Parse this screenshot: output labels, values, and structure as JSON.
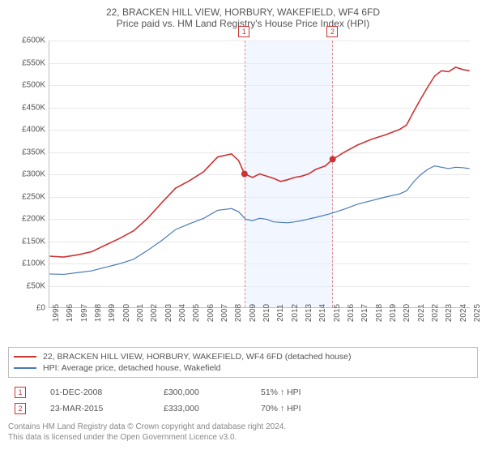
{
  "title_line1": "22, BRACKEN HILL VIEW, HORBURY, WAKEFIELD, WF4 6FD",
  "title_line2": "Price paid vs. HM Land Registry's House Price Index (HPI)",
  "chart": {
    "type": "line",
    "background_color": "#ffffff",
    "grid_color": "#e8e8e8",
    "border_color": "#bfbfbf",
    "highlight_color": "#e6f0ff",
    "highlight_border_color": "#cc3333",
    "y_axis": {
      "min": 0,
      "max": 600000,
      "tick_step": 50000,
      "tick_labels": [
        "£0",
        "£50K",
        "£100K",
        "£150K",
        "£200K",
        "£250K",
        "£300K",
        "£350K",
        "£400K",
        "£450K",
        "£500K",
        "£550K",
        "£600K"
      ],
      "label_fontsize": 10,
      "label_color": "#555555"
    },
    "x_axis": {
      "min": 1995,
      "max": 2025,
      "tick_step": 1,
      "tick_labels": [
        "1995",
        "1996",
        "1997",
        "1998",
        "1999",
        "2000",
        "2001",
        "2002",
        "2003",
        "2004",
        "2005",
        "2006",
        "2007",
        "2008",
        "2009",
        "2010",
        "2011",
        "2012",
        "2013",
        "2014",
        "2015",
        "2016",
        "2017",
        "2018",
        "2019",
        "2020",
        "2021",
        "2022",
        "2023",
        "2024",
        "2025"
      ],
      "label_fontsize": 10,
      "label_color": "#555555"
    },
    "highlight_band": {
      "x_start": 2008.92,
      "x_end": 2015.22
    },
    "series": [
      {
        "name": "22, BRACKEN HILL VIEW, HORBURY, WAKEFIELD, WF4 6FD (detached house)",
        "color": "#cc3333",
        "line_width": 1.6,
        "data": [
          [
            1995,
            115000
          ],
          [
            1996,
            113000
          ],
          [
            1997,
            118000
          ],
          [
            1998,
            125000
          ],
          [
            1999,
            140000
          ],
          [
            2000,
            155000
          ],
          [
            2001,
            172000
          ],
          [
            2002,
            200000
          ],
          [
            2003,
            235000
          ],
          [
            2004,
            268000
          ],
          [
            2005,
            285000
          ],
          [
            2006,
            305000
          ],
          [
            2007,
            338000
          ],
          [
            2008,
            345000
          ],
          [
            2008.5,
            330000
          ],
          [
            2008.92,
            300000
          ],
          [
            2009.5,
            292000
          ],
          [
            2010,
            300000
          ],
          [
            2010.5,
            295000
          ],
          [
            2011,
            290000
          ],
          [
            2011.5,
            283000
          ],
          [
            2012,
            287000
          ],
          [
            2012.5,
            292000
          ],
          [
            2013,
            295000
          ],
          [
            2013.5,
            300000
          ],
          [
            2014,
            310000
          ],
          [
            2014.7,
            318000
          ],
          [
            2015.22,
            333000
          ],
          [
            2015.6,
            340000
          ],
          [
            2016,
            348000
          ],
          [
            2017,
            365000
          ],
          [
            2018,
            378000
          ],
          [
            2019,
            388000
          ],
          [
            2020,
            400000
          ],
          [
            2020.5,
            410000
          ],
          [
            2021,
            440000
          ],
          [
            2021.5,
            468000
          ],
          [
            2022,
            495000
          ],
          [
            2022.5,
            520000
          ],
          [
            2023,
            532000
          ],
          [
            2023.5,
            530000
          ],
          [
            2024,
            540000
          ],
          [
            2024.5,
            535000
          ],
          [
            2025,
            532000
          ]
        ]
      },
      {
        "name": "HPI: Average price, detached house, Wakefield",
        "color": "#4a7ab8",
        "line_width": 1.2,
        "data": [
          [
            1995,
            75000
          ],
          [
            1996,
            74000
          ],
          [
            1997,
            78000
          ],
          [
            1998,
            82000
          ],
          [
            1999,
            90000
          ],
          [
            2000,
            98000
          ],
          [
            2001,
            108000
          ],
          [
            2002,
            128000
          ],
          [
            2003,
            150000
          ],
          [
            2004,
            175000
          ],
          [
            2005,
            188000
          ],
          [
            2006,
            200000
          ],
          [
            2007,
            218000
          ],
          [
            2008,
            222000
          ],
          [
            2008.5,
            215000
          ],
          [
            2009,
            198000
          ],
          [
            2009.5,
            195000
          ],
          [
            2010,
            200000
          ],
          [
            2010.5,
            198000
          ],
          [
            2011,
            192000
          ],
          [
            2012,
            190000
          ],
          [
            2012.5,
            192000
          ],
          [
            2013,
            195000
          ],
          [
            2014,
            202000
          ],
          [
            2015,
            210000
          ],
          [
            2016,
            220000
          ],
          [
            2017,
            232000
          ],
          [
            2018,
            240000
          ],
          [
            2019,
            248000
          ],
          [
            2020,
            255000
          ],
          [
            2020.5,
            262000
          ],
          [
            2021,
            282000
          ],
          [
            2021.5,
            298000
          ],
          [
            2022,
            310000
          ],
          [
            2022.5,
            318000
          ],
          [
            2023,
            315000
          ],
          [
            2023.5,
            312000
          ],
          [
            2024,
            315000
          ],
          [
            2024.5,
            314000
          ],
          [
            2025,
            312000
          ]
        ]
      }
    ],
    "sale_markers": [
      {
        "label": "1",
        "x": 2008.92,
        "y": 300000,
        "marker_color": "#cc3333"
      },
      {
        "label": "2",
        "x": 2015.22,
        "y": 333000,
        "marker_color": "#cc3333"
      }
    ]
  },
  "legend": {
    "border_color": "#bfbfbf",
    "items": [
      {
        "color": "#cc3333",
        "label": "22, BRACKEN HILL VIEW, HORBURY, WAKEFIELD, WF4 6FD (detached house)"
      },
      {
        "color": "#4a7ab8",
        "label": "HPI: Average price, detached house, Wakefield"
      }
    ]
  },
  "sales": [
    {
      "marker": "1",
      "date": "01-DEC-2008",
      "price": "£300,000",
      "pct": "51% ↑ HPI"
    },
    {
      "marker": "2",
      "date": "23-MAR-2015",
      "price": "£333,000",
      "pct": "70% ↑ HPI"
    }
  ],
  "footer": {
    "line1": "Contains HM Land Registry data © Crown copyright and database right 2024.",
    "line2": "This data is licensed under the Open Government Licence v3.0."
  }
}
